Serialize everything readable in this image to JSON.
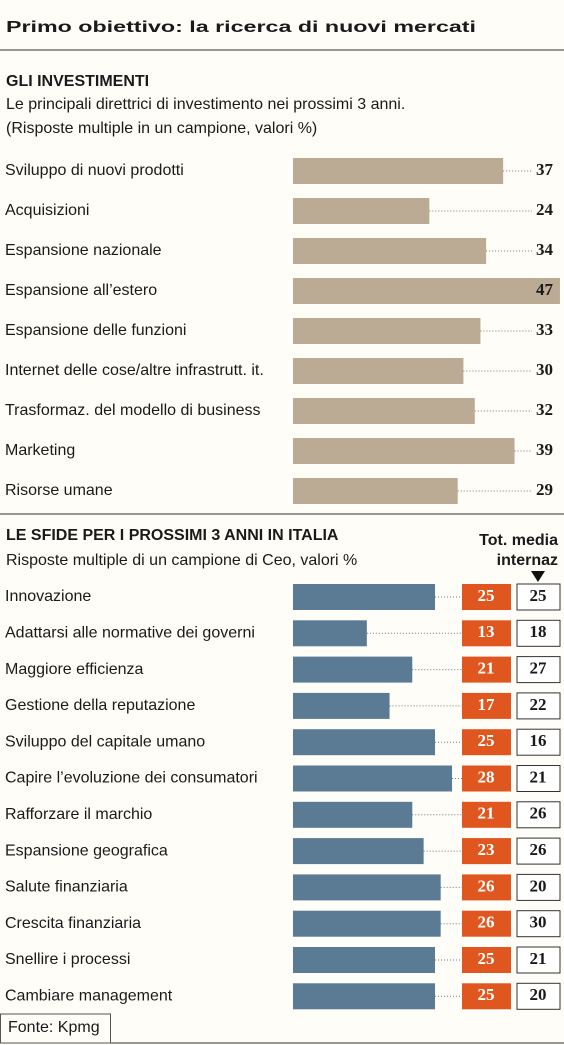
{
  "title": "Primo obiettivo: la ricerca di nuovi mercati",
  "source": "Fonte: Kpmg",
  "chart_data": [
    {
      "type": "bar",
      "orientation": "horizontal",
      "title": "GLI INVESTIMENTI",
      "subtitle": [
        "Le principali direttrici di investimento nei prossimi 3 anni.",
        "(Risposte multiple in un campione, valori %)"
      ],
      "categories": [
        "Sviluppo di nuovi prodotti",
        "Acquisizioni",
        "Espansione nazionale",
        "Espansione all’estero",
        "Espansione delle funzioni",
        "Internet delle cose/altre infrastrutt. it.",
        "Trasformaz. del modello di business",
        "Marketing",
        "Risorse umane"
      ],
      "values": [
        37,
        24,
        34,
        47,
        33,
        30,
        32,
        39,
        29
      ],
      "color": "#bcab94"
    },
    {
      "type": "bar",
      "orientation": "horizontal",
      "title": "LE SFIDE PER I PROSSIMI 3 ANNI IN ITALIA",
      "subtitle": [
        "Risposte multiple di un campione di Ceo, valori %"
      ],
      "categories": [
        "Innovazione",
        "Adattarsi alle normative dei governi",
        "Maggiore efficienza",
        "Gestione della reputazione",
        "Sviluppo del capitale umano",
        "Capire l’evoluzione dei consumatori",
        "Rafforzare il marchio",
        "Espansione geografica",
        "Salute finanziaria",
        "Crescita finanziaria",
        "Snellire i processi",
        "Cambiare management"
      ],
      "series": [
        {
          "color": "#5b7b94",
          "label_color": "#e0561f",
          "values": [
            25,
            13,
            21,
            17,
            25,
            28,
            21,
            23,
            26,
            26,
            25,
            25
          ]
        },
        {
          "name": "Tot. media internaz",
          "values": [
            25,
            18,
            27,
            22,
            16,
            21,
            26,
            26,
            20,
            30,
            21,
            20
          ]
        }
      ]
    }
  ]
}
